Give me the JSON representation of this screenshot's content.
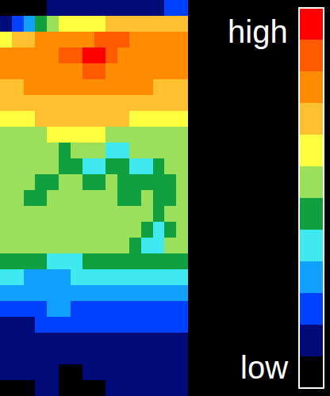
{
  "chart_data": {
    "type": "heatmap",
    "tick_labels": false,
    "colors": [
      "#000000",
      "#000a78",
      "#0040ff",
      "#12a0ff",
      "#40e8f0",
      "#10a040",
      "#9be05a",
      "#ffff40",
      "#ffc030",
      "#ff8c00",
      "#ff5a00",
      "#ff0000"
    ],
    "colorbar": {
      "range": [
        -0.5,
        11.5
      ],
      "ticks": [
        {
          "value": 10.75,
          "label": "high"
        },
        {
          "value": 0.15,
          "label": "low"
        }
      ]
    },
    "cells": [
      [
        0,
        0,
        0,
        0,
        1,
        1,
        1,
        1,
        1,
        1,
        1,
        1,
        1,
        1,
        2,
        2
      ],
      [
        1,
        2,
        3,
        5,
        6,
        7,
        7,
        7,
        7,
        8,
        8,
        8,
        8,
        8,
        8,
        8
      ],
      [
        7,
        8,
        8,
        9,
        9,
        9,
        9,
        9,
        10,
        10,
        10,
        9,
        9,
        9,
        9,
        9
      ],
      [
        9,
        9,
        9,
        9,
        9,
        10,
        10,
        11,
        11,
        10,
        9,
        9,
        9,
        9,
        9,
        9
      ],
      [
        9,
        9,
        9,
        9,
        9,
        9,
        9,
        10,
        10,
        9,
        9,
        9,
        9,
        9,
        9,
        9
      ],
      [
        8,
        8,
        9,
        9,
        9,
        9,
        9,
        9,
        9,
        9,
        9,
        9,
        9,
        8,
        8,
        8
      ],
      [
        8,
        8,
        8,
        8,
        8,
        8,
        8,
        8,
        8,
        8,
        8,
        8,
        8,
        8,
        8,
        8
      ],
      [
        7,
        7,
        7,
        8,
        8,
        8,
        8,
        8,
        8,
        8,
        8,
        7,
        7,
        7,
        7,
        7
      ],
      [
        6,
        6,
        6,
        6,
        7,
        7,
        7,
        7,
        7,
        6,
        6,
        6,
        6,
        6,
        6,
        6
      ],
      [
        6,
        6,
        6,
        6,
        6,
        5,
        6,
        6,
        6,
        4,
        4,
        6,
        6,
        6,
        6,
        6
      ],
      [
        6,
        6,
        6,
        6,
        6,
        5,
        5,
        4,
        4,
        5,
        5,
        4,
        4,
        5,
        6,
        6
      ],
      [
        6,
        6,
        6,
        5,
        5,
        6,
        6,
        5,
        5,
        6,
        5,
        5,
        5,
        5,
        5,
        6
      ],
      [
        6,
        6,
        5,
        5,
        6,
        6,
        6,
        6,
        6,
        6,
        5,
        5,
        6,
        5,
        5,
        6
      ],
      [
        6,
        6,
        6,
        6,
        6,
        6,
        6,
        6,
        6,
        6,
        6,
        6,
        6,
        5,
        6,
        6
      ],
      [
        6,
        6,
        6,
        6,
        6,
        6,
        6,
        6,
        6,
        6,
        6,
        6,
        5,
        4,
        5,
        6
      ],
      [
        6,
        6,
        6,
        6,
        6,
        6,
        6,
        6,
        6,
        6,
        6,
        5,
        4,
        4,
        6,
        6
      ],
      [
        5,
        5,
        5,
        5,
        4,
        4,
        4,
        5,
        5,
        5,
        5,
        5,
        5,
        5,
        5,
        5
      ],
      [
        4,
        4,
        3,
        3,
        3,
        3,
        4,
        4,
        4,
        4,
        4,
        4,
        4,
        4,
        4,
        4
      ],
      [
        3,
        3,
        3,
        3,
        3,
        3,
        3,
        3,
        3,
        3,
        3,
        3,
        3,
        3,
        3,
        3
      ],
      [
        2,
        2,
        2,
        2,
        3,
        3,
        2,
        2,
        2,
        2,
        2,
        2,
        2,
        2,
        2,
        2
      ],
      [
        1,
        1,
        1,
        2,
        2,
        2,
        2,
        2,
        2,
        2,
        2,
        2,
        2,
        2,
        2,
        2
      ],
      [
        1,
        1,
        1,
        1,
        1,
        1,
        1,
        1,
        1,
        1,
        1,
        1,
        1,
        1,
        1,
        1
      ],
      [
        1,
        1,
        1,
        1,
        1,
        1,
        1,
        1,
        1,
        1,
        1,
        1,
        1,
        1,
        1,
        1
      ],
      [
        1,
        1,
        1,
        1,
        1,
        0,
        0,
        1,
        1,
        1,
        1,
        1,
        1,
        1,
        1,
        1
      ],
      [
        0,
        0,
        0,
        1,
        1,
        0,
        0,
        0,
        0,
        1,
        1,
        1,
        1,
        1,
        1,
        1
      ]
    ]
  }
}
